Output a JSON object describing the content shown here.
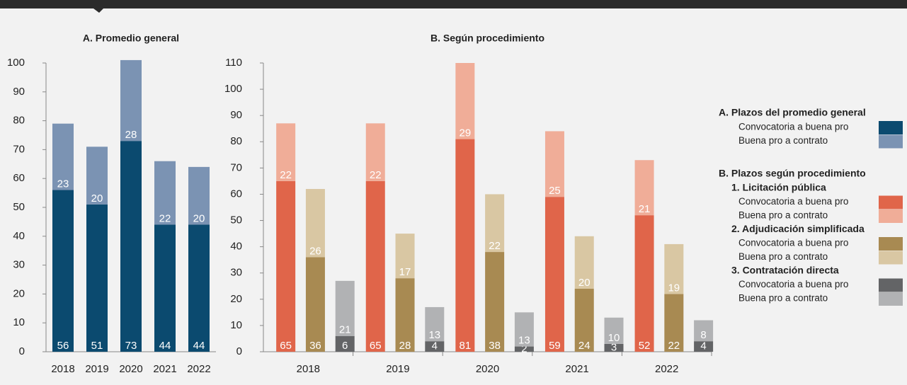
{
  "chart_data": [
    {
      "type": "stacked_bar",
      "title": "A. Promedio general",
      "categories": [
        "2018",
        "2019",
        "2020",
        "2021",
        "2022"
      ],
      "series": [
        {
          "name": "Convocatoria a buena pro",
          "color": "#0b4a6f",
          "values": [
            56,
            51,
            73,
            44,
            44
          ]
        },
        {
          "name": "Buena pro a contrato",
          "color": "#7b93b3",
          "values": [
            23,
            20,
            28,
            22,
            20
          ]
        }
      ],
      "ylim": [
        0,
        100
      ],
      "yticks": [
        0,
        10,
        20,
        30,
        40,
        50,
        60,
        70,
        80,
        90,
        100
      ],
      "legend_title": "A. Plazos del promedio general"
    },
    {
      "type": "grouped_stacked_bar",
      "title": "B. Según procedimiento",
      "categories": [
        "2018",
        "2019",
        "2020",
        "2021",
        "2022"
      ],
      "groups": [
        {
          "name": "1. Licitación pública",
          "series": [
            {
              "name": "Convocatoria a buena pro",
              "color": "#e0654a",
              "values": [
                65,
                65,
                81,
                59,
                52
              ]
            },
            {
              "name": "Buena pro a contrato",
              "color": "#f0ad98",
              "values": [
                22,
                22,
                29,
                25,
                21
              ]
            }
          ]
        },
        {
          "name": "2. Adjudicación simplificada",
          "series": [
            {
              "name": "Convocatoria a buena pro",
              "color": "#a88a52",
              "values": [
                36,
                28,
                38,
                24,
                22
              ]
            },
            {
              "name": "Buena pro a contrato",
              "color": "#d9c7a3",
              "values": [
                26,
                17,
                22,
                20,
                19
              ]
            }
          ]
        },
        {
          "name": "3. Contratación directa",
          "series": [
            {
              "name": "Convocatoria a buena pro",
              "color": "#636466",
              "values": [
                6,
                4,
                2,
                3,
                4
              ]
            },
            {
              "name": "Buena pro a contrato",
              "color": "#b1b2b4",
              "values": [
                21,
                13,
                13,
                10,
                8
              ]
            }
          ]
        }
      ],
      "ylim": [
        0,
        110
      ],
      "yticks": [
        0,
        10,
        20,
        30,
        40,
        50,
        60,
        70,
        80,
        90,
        100,
        110
      ],
      "legend_title": "B. Plazos según procedimiento"
    }
  ]
}
